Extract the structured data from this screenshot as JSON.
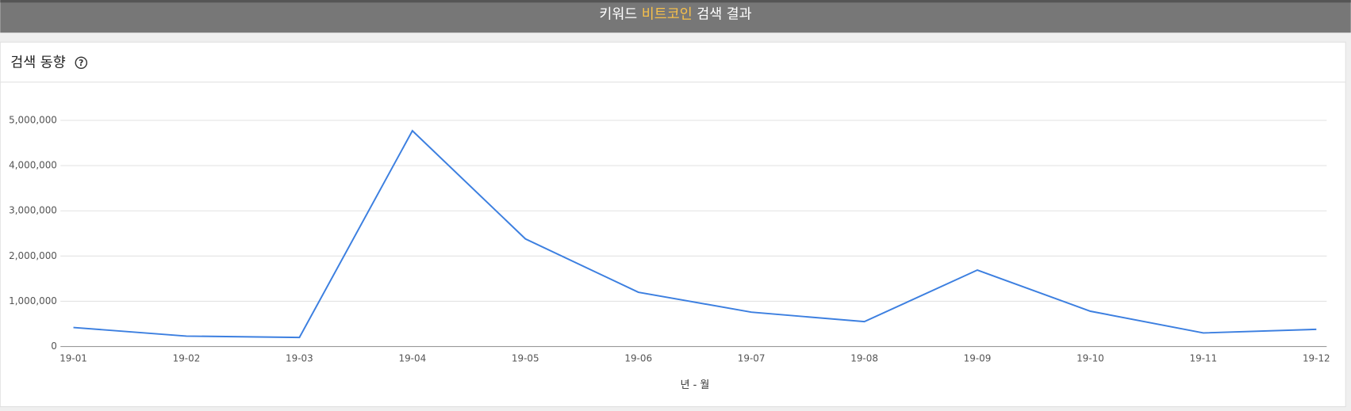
{
  "header": {
    "title_prefix": "키워드",
    "keyword": "비트코인",
    "title_suffix": "검색 결과"
  },
  "card": {
    "title": "검색 동향",
    "help_icon": "?"
  },
  "chart_data": {
    "type": "line",
    "x": [
      "19-01",
      "19-02",
      "19-03",
      "19-04",
      "19-05",
      "19-06",
      "19-07",
      "19-08",
      "19-09",
      "19-10",
      "19-11",
      "19-12"
    ],
    "values": [
      420000,
      230000,
      200000,
      4770000,
      2380000,
      1200000,
      760000,
      550000,
      1690000,
      780000,
      300000,
      380000
    ],
    "color": "#3c7fe0",
    "xlabel": "년 - 월",
    "ylim": [
      0,
      5000000
    ],
    "yticks": [
      0,
      {
        "value": 1000000,
        "label": "1,000,000"
      },
      {
        "value": 2000000,
        "label": "2,000,000"
      },
      {
        "value": 3000000,
        "label": "3,000,000"
      },
      {
        "value": 4000000,
        "label": "4,000,000"
      },
      {
        "value": 5000000,
        "label": "5,000,000"
      }
    ],
    "grid": true
  }
}
